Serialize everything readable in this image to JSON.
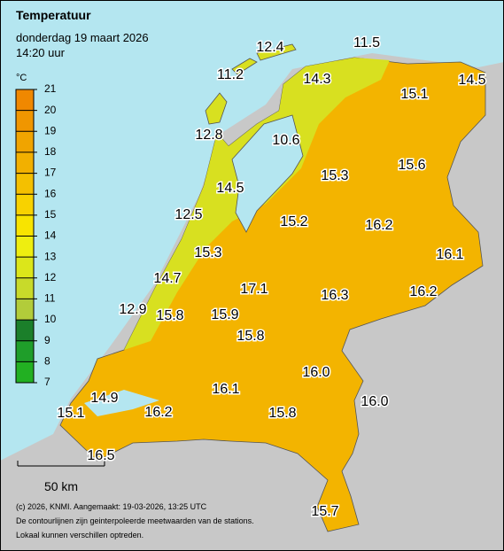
{
  "title": "Temperatuur",
  "date": "donderdag 19 maart 2026",
  "time": "14:20 uur",
  "colorbar": {
    "unit": "°C",
    "ticks": [
      7,
      8,
      9,
      10,
      11,
      12,
      13,
      14,
      15,
      16,
      17,
      18,
      19,
      20,
      21
    ],
    "colors": [
      "#22b022",
      "#1f9e2a",
      "#1b7f2a",
      "#b2cc3a",
      "#c8da2a",
      "#dce61a",
      "#eeee10",
      "#f8e400",
      "#f8d200",
      "#f4c000",
      "#f2b000",
      "#f0a400",
      "#f09600",
      "#f08800"
    ]
  },
  "stations": [
    {
      "label": "12.4"
    },
    {
      "label": "11.5"
    },
    {
      "label": "11.2"
    },
    {
      "label": "14.3"
    },
    {
      "label": "15.1"
    },
    {
      "label": "14.5"
    },
    {
      "label": "12.8"
    },
    {
      "label": "10.6"
    },
    {
      "label": "15.3"
    },
    {
      "label": "15.6"
    },
    {
      "label": "14.5"
    },
    {
      "label": "12.5"
    },
    {
      "label": "15.2"
    },
    {
      "label": "16.2"
    },
    {
      "label": "15.3"
    },
    {
      "label": "16.1"
    },
    {
      "label": "14.7"
    },
    {
      "label": "17.1"
    },
    {
      "label": "16.3"
    },
    {
      "label": "16.2"
    },
    {
      "label": "12.9"
    },
    {
      "label": "15.8"
    },
    {
      "label": "15.9"
    },
    {
      "label": "15.8"
    },
    {
      "label": "16.0"
    },
    {
      "label": "14.9"
    },
    {
      "label": "16.1"
    },
    {
      "label": "16.0"
    },
    {
      "label": "15.1"
    },
    {
      "label": "16.2"
    },
    {
      "label": "15.8"
    },
    {
      "label": "16.5"
    },
    {
      "label": "15.7"
    }
  ],
  "scale_label": "50 km",
  "footer": [
    "(c) 2026, KNMI. Aangemaakt: 19-03-2026, 13:25 UTC",
    "De contourlijnen zijn geinterpoleerde meetwaarden van de stations.",
    "Lokaal kunnen verschillen optreden."
  ]
}
